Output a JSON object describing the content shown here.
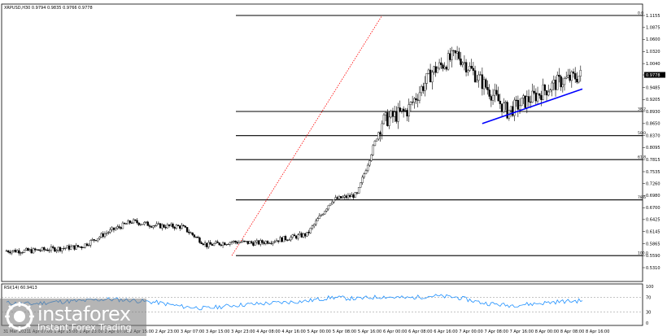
{
  "header": {
    "title": "XRPUSD,H30  0.9794 0.9835 0.9766 0.9778"
  },
  "price_axis": {
    "labels": [
      "1.1155",
      "1.0875",
      "1.0600",
      "1.0320",
      "1.0040",
      "0.9778",
      "0.9485",
      "0.9205",
      "0.8930",
      "0.8650",
      "0.8370",
      "0.8095",
      "0.7815",
      "0.7535",
      "0.7260",
      "0.6980",
      "0.6700",
      "0.6425",
      "0.6145",
      "0.5865",
      "0.5590",
      "0.5310"
    ],
    "current_price": "0.9778"
  },
  "time_axis": {
    "labels": [
      "31 Mar 2021",
      "1 Apr 07:00",
      "1 Apr 15:00",
      "1 Apr 23:00",
      "2 Apr 07:00",
      "2 Apr 15:00",
      "2 Apr 23:00",
      "3 Apr 07:00",
      "3 Apr 15:00",
      "3 Apr 23:00",
      "4 Apr 08:00",
      "4 Apr 16:00",
      "5 Apr 00:00",
      "5 Apr 08:00",
      "5 Apr 16:00",
      "6 Apr 00:00",
      "6 Apr 08:00",
      "6 Apr 16:00",
      "7 Apr 00:00",
      "7 Apr 08:00",
      "7 Apr 16:00",
      "8 Apr 00:00",
      "8 Apr 08:00",
      "8 Apr 16:00"
    ]
  },
  "fib_labels": [
    "0.0",
    "38.2",
    "50.0",
    "61.8",
    "78.6",
    "100.0"
  ],
  "rsi": {
    "label": "RSI(14) 60.9413",
    "axis_labels": [
      "100",
      "70",
      "30",
      "0"
    ]
  },
  "watermark": {
    "brand": "instaforex",
    "tagline": "Instant Forex Trading"
  },
  "colors": {
    "candle": "#000000",
    "trendline": "#0000ff",
    "fib_projection": "#ff0000",
    "rsi_line": "#1e90ff",
    "level_line": "#000000"
  },
  "chart_data": {
    "type": "candlestick",
    "title": "XRPUSD,H30  0.9794 0.9835 0.9766 0.9778",
    "ylim": [
      0.531,
      1.1155
    ],
    "x": [
      "31 Mar 2021",
      "1 Apr 07:00",
      "1 Apr 15:00",
      "1 Apr 23:00",
      "2 Apr 07:00",
      "2 Apr 15:00",
      "2 Apr 23:00",
      "3 Apr 07:00",
      "3 Apr 15:00",
      "3 Apr 23:00",
      "4 Apr 08:00",
      "4 Apr 16:00",
      "5 Apr 00:00",
      "5 Apr 08:00",
      "5 Apr 16:00",
      "6 Apr 00:00",
      "6 Apr 08:00",
      "6 Apr 16:00",
      "7 Apr 00:00",
      "7 Apr 08:00",
      "7 Apr 16:00",
      "8 Apr 00:00",
      "8 Apr 08:00",
      "8 Apr 16:00"
    ],
    "close": [
      0.57,
      0.57,
      0.575,
      0.58,
      0.612,
      0.638,
      0.628,
      0.626,
      0.583,
      0.591,
      0.588,
      0.597,
      0.608,
      0.688,
      0.7,
      0.87,
      0.895,
      0.985,
      1.025,
      0.96,
      0.893,
      0.925,
      0.96,
      0.978
    ],
    "fibonacci_levels": [
      {
        "label": "0.0",
        "price": 1.1155
      },
      {
        "label": "38.2",
        "price": 0.893
      },
      {
        "label": "50.0",
        "price": 0.837
      },
      {
        "label": "61.8",
        "price": 0.7815
      },
      {
        "label": "78.6",
        "price": 0.688
      },
      {
        "label": "100.0",
        "price": 0.559
      }
    ],
    "trendline": {
      "from": {
        "x": "7 Apr 08:00",
        "y": 0.865
      },
      "to": {
        "x": "8 Apr 16:00",
        "y": 0.945
      }
    },
    "fib_projection": {
      "from": {
        "x": "3 Apr 23:00",
        "y": 0.559
      },
      "to": {
        "x": "6 Apr 00:00",
        "y": 1.1155
      }
    },
    "rsi": {
      "name": "RSI(14)",
      "ylim": [
        0,
        100
      ],
      "levels": [
        70,
        30
      ],
      "values": [
        55,
        52,
        58,
        60,
        65,
        62,
        56,
        45,
        40,
        48,
        52,
        56,
        60,
        70,
        66,
        72,
        68,
        74,
        70,
        55,
        48,
        52,
        58,
        60.94
      ]
    }
  }
}
